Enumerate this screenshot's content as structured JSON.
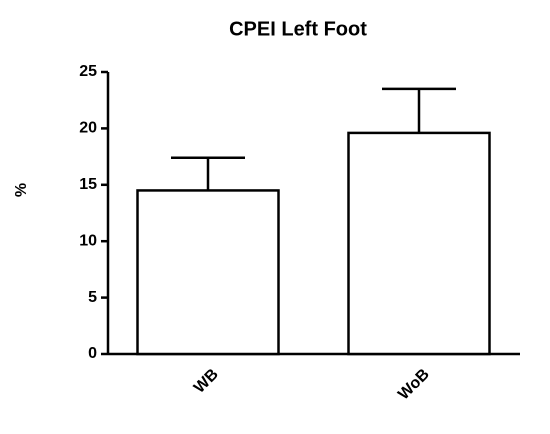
{
  "chart_data": {
    "type": "bar",
    "title": "CPEI Left Foot",
    "ylabel": "%",
    "categories": [
      "WB",
      "WoB"
    ],
    "values": [
      14.5,
      19.6
    ],
    "errors": [
      2.9,
      3.9
    ],
    "color": "#ffffff",
    "edgecolor": "#000000",
    "ylim": [
      0,
      25
    ],
    "yticks": [
      0,
      5,
      10,
      15,
      20,
      25
    ],
    "grid": false
  }
}
